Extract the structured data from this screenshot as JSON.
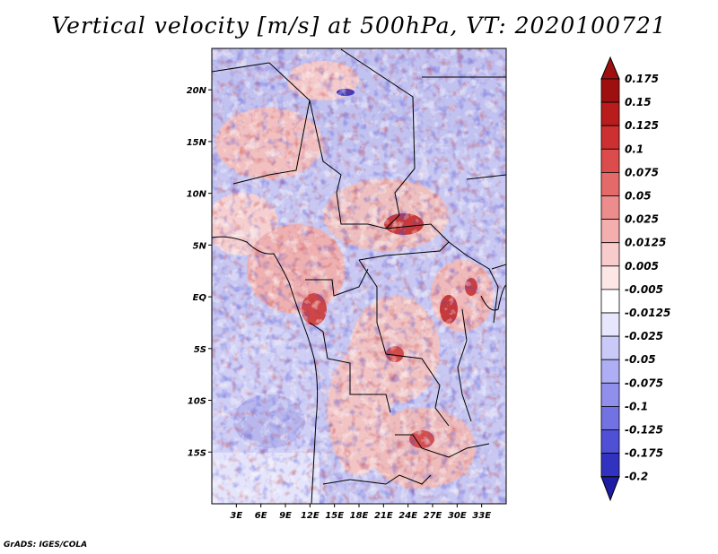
{
  "title": "Vertical velocity [m/s] at 500hPa, VT: 2020100721",
  "credit": "GrADS: IGES/COLA",
  "map": {
    "lon_range": [
      0,
      36
    ],
    "lat_range": [
      -20,
      24
    ],
    "x_ticks": [
      {
        "value": 3,
        "label": "3E"
      },
      {
        "value": 6,
        "label": "6E"
      },
      {
        "value": 9,
        "label": "9E"
      },
      {
        "value": 12,
        "label": "12E"
      },
      {
        "value": 15,
        "label": "15E"
      },
      {
        "value": 18,
        "label": "18E"
      },
      {
        "value": 21,
        "label": "21E"
      },
      {
        "value": 24,
        "label": "24E"
      },
      {
        "value": 27,
        "label": "27E"
      },
      {
        "value": 30,
        "label": "30E"
      },
      {
        "value": 33,
        "label": "33E"
      }
    ],
    "y_ticks": [
      {
        "value": 20,
        "label": "20N"
      },
      {
        "value": 15,
        "label": "15N"
      },
      {
        "value": 10,
        "label": "10N"
      },
      {
        "value": 5,
        "label": "5N"
      },
      {
        "value": 0,
        "label": "EQ"
      },
      {
        "value": -5,
        "label": "5S"
      },
      {
        "value": -10,
        "label": "10S"
      },
      {
        "value": -15,
        "label": "15S"
      }
    ]
  },
  "colorbar": {
    "levels": [
      {
        "label": "0.175",
        "color": "#9e1010"
      },
      {
        "label": "0.15",
        "color": "#b81c1c"
      },
      {
        "label": "0.125",
        "color": "#cc3030"
      },
      {
        "label": "0.1",
        "color": "#dc4c4c"
      },
      {
        "label": "0.075",
        "color": "#e46a6a"
      },
      {
        "label": "0.05",
        "color": "#ec8c8c"
      },
      {
        "label": "0.025",
        "color": "#f4aeae"
      },
      {
        "label": "0.0125",
        "color": "#f8cccc"
      },
      {
        "label": "0.005",
        "color": "#fce6e6"
      },
      {
        "label": "-0.005",
        "color": "#ffffff"
      },
      {
        "label": "-0.0125",
        "color": "#e6e6fc"
      },
      {
        "label": "-0.025",
        "color": "#cacaf8"
      },
      {
        "label": "-0.05",
        "color": "#aeaef4"
      },
      {
        "label": "-0.075",
        "color": "#9090ec"
      },
      {
        "label": "-0.1",
        "color": "#7272e2"
      },
      {
        "label": "-0.125",
        "color": "#5050d6"
      },
      {
        "label": "-0.175",
        "color": "#3232c0"
      },
      {
        "label": "-0.2",
        "color": "#1c1ca4"
      }
    ],
    "top_color": "#9e1010",
    "bottom_color": "#1c1ca4"
  }
}
